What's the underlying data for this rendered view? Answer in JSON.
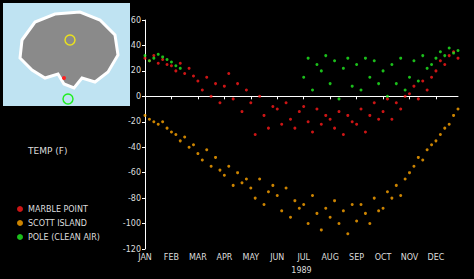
{
  "chart_data": {
    "type": "scatter",
    "y_label": "TEMP (F)",
    "x_label": "1989",
    "categories": [
      "JAN",
      null,
      null,
      null,
      null,
      null,
      "FEB",
      null,
      null,
      null,
      null,
      null,
      "MAR",
      null,
      null,
      null,
      null,
      null,
      "APR",
      null,
      null,
      null,
      null,
      null,
      "MAY",
      null,
      null,
      null,
      null,
      null,
      "JUN",
      null,
      null,
      null,
      null,
      null,
      "JUL",
      null,
      null,
      null,
      null,
      null,
      "AUG",
      null,
      null,
      null,
      null,
      null,
      "SEP",
      null,
      null,
      null,
      null,
      null,
      "OCT",
      null,
      null,
      null,
      null,
      null,
      "NOV",
      null,
      null,
      null,
      null,
      null,
      "DEC",
      null,
      null,
      null,
      null,
      null
    ],
    "series": [
      {
        "name": "MARBLE POINT",
        "color": "#ff1a1a",
        "values": [
          30,
          28,
          32,
          26,
          29,
          25,
          24,
          20,
          26,
          18,
          22,
          16,
          12,
          5,
          15,
          0,
          10,
          -5,
          8,
          18,
          -2,
          10,
          -12,
          5,
          -5,
          -30,
          0,
          -15,
          -25,
          -8,
          -10,
          -22,
          -5,
          -18,
          -25,
          -12,
          -8,
          -20,
          -28,
          -10,
          -22,
          -15,
          -18,
          -25,
          -12,
          -30,
          -15,
          -20,
          -22,
          -10,
          -28,
          -15,
          -5,
          -18,
          -12,
          -2,
          -18,
          -5,
          -10,
          0,
          2,
          8,
          -2,
          12,
          5,
          15,
          20,
          28,
          25,
          32,
          35,
          30
        ]
      },
      {
        "name": "SCOTT ISLAND",
        "color": "#ffa500",
        "values": [
          -15,
          -18,
          -20,
          -22,
          -20,
          -25,
          -28,
          -30,
          -35,
          -32,
          -40,
          -38,
          -45,
          -50,
          -42,
          -55,
          -48,
          -58,
          -62,
          -55,
          -70,
          -60,
          -68,
          -65,
          -72,
          -80,
          -65,
          -85,
          -75,
          -70,
          -78,
          -90,
          -72,
          -95,
          -82,
          -88,
          -85,
          -100,
          -78,
          -92,
          -105,
          -88,
          -95,
          -82,
          -100,
          -90,
          -108,
          -85,
          -98,
          -85,
          -92,
          -100,
          -80,
          -90,
          -88,
          -75,
          -80,
          -70,
          -78,
          -65,
          -60,
          -55,
          -48,
          -50,
          -42,
          -38,
          -35,
          -30,
          -25,
          -22,
          -15,
          -10
        ]
      },
      {
        "name": "POLE (CLEAN AIR)",
        "color": "#22ee22",
        "values": [
          32,
          28,
          30,
          33,
          31,
          29,
          27,
          24,
          22,
          null,
          null,
          null,
          null,
          null,
          null,
          null,
          null,
          null,
          null,
          null,
          null,
          null,
          null,
          null,
          null,
          null,
          null,
          null,
          null,
          null,
          null,
          null,
          null,
          null,
          null,
          null,
          15,
          30,
          5,
          25,
          20,
          32,
          10,
          28,
          -2,
          22,
          30,
          8,
          25,
          5,
          30,
          15,
          28,
          10,
          20,
          0,
          25,
          10,
          30,
          5,
          15,
          28,
          12,
          32,
          22,
          25,
          30,
          35,
          32,
          38,
          34,
          36
        ]
      }
    ],
    "ylim": [
      -120,
      60
    ],
    "yticks": [
      -120,
      -100,
      -80,
      -60,
      -40,
      -20,
      0,
      20,
      40,
      60
    ],
    "grid": false,
    "legend": "left",
    "marker": "circle"
  }
}
